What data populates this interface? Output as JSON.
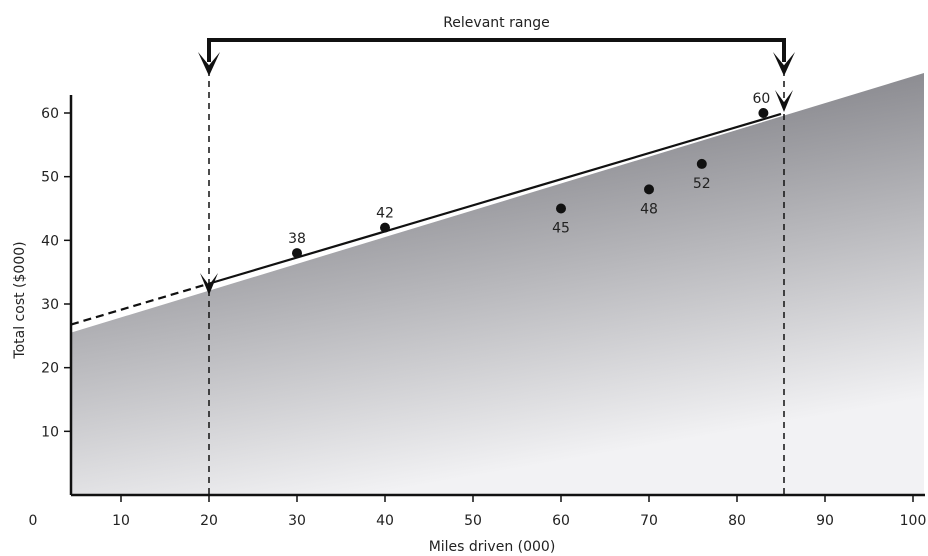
{
  "chart_data": {
    "type": "scatter",
    "title": "",
    "xlabel": "Miles driven (000)",
    "ylabel": "Total cost ($000)",
    "xlim": [
      0,
      100
    ],
    "ylim": [
      0,
      60
    ],
    "x_ticks": [
      "0",
      "10",
      "20",
      "30",
      "40",
      "50",
      "60",
      "70",
      "80",
      "90",
      "100"
    ],
    "y_ticks": [
      "10",
      "20",
      "30",
      "40",
      "50",
      "60"
    ],
    "grid": false,
    "shaded_area": "below cost line, gradient dark to light",
    "points": [
      {
        "x": 30,
        "y": 38,
        "label": "38",
        "label_pos": "above"
      },
      {
        "x": 40,
        "y": 42,
        "label": "42",
        "label_pos": "above"
      },
      {
        "x": 60,
        "y": 45,
        "label": "45",
        "label_pos": "below"
      },
      {
        "x": 70,
        "y": 48,
        "label": "48",
        "label_pos": "below"
      },
      {
        "x": 76,
        "y": 52,
        "label": "52",
        "label_pos": "below"
      },
      {
        "x": 83,
        "y": 60,
        "label": "60",
        "label_pos": "above"
      }
    ],
    "cost_line": {
      "intercept": 25,
      "slope": 0.41,
      "dashed_below_x": 20
    },
    "relevant_range": {
      "label": "Relevant range",
      "from": 20,
      "to": 85
    }
  },
  "colors": {
    "shade_dark": "#5f5f66",
    "shade_light": "#f2f2f4",
    "ink": "#111111"
  }
}
